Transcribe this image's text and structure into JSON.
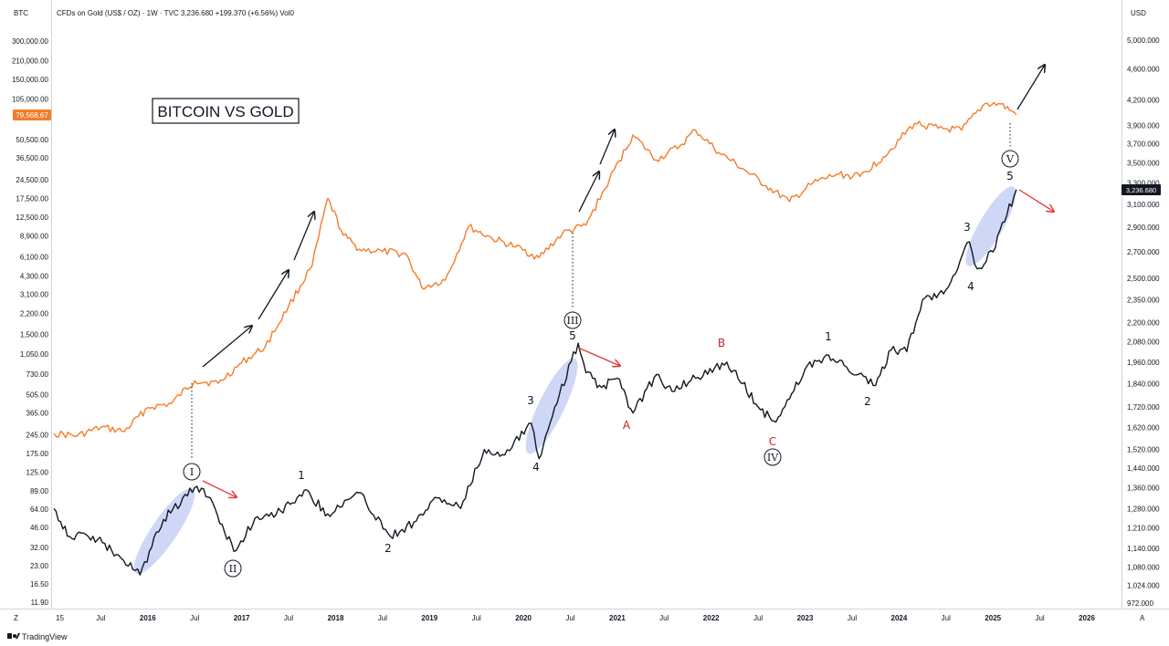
{
  "header": {
    "left_symbol": "BTC",
    "legend": "CFDs on Gold (US$ / OZ) · 1W · TVC  3,236.680  +199.370 (+6.56%)  Vol0",
    "right_currency": "USD"
  },
  "title": "BITCOIN VS GOLD",
  "footer": {
    "logo_text": "TradingView",
    "left_marker": "Z",
    "right_marker": "A"
  },
  "colors": {
    "btc_line": "#f57c2a",
    "gold_line": "#131722",
    "highlight": "#b9c8f2",
    "price_tag_btc": "#f57c2a",
    "price_tag_gold": "#131722",
    "up_arrow": "#131722",
    "down_arrow": "#e53935"
  },
  "chart_data": {
    "type": "line",
    "title": "BITCOIN VS GOLD",
    "x_axis": {
      "labels": [
        "15",
        "Jul",
        "2016",
        "Jul",
        "2017",
        "Jul",
        "2018",
        "Jul",
        "2019",
        "Jul",
        "2020",
        "Jul",
        "2021",
        "Jul",
        "2022",
        "Jul",
        "2023",
        "Jul",
        "2024",
        "Jul",
        "2025",
        "Jul",
        "2026"
      ],
      "range": [
        "2015-01",
        "2026-07"
      ]
    },
    "left_axis": {
      "scale": "log",
      "labels": [
        "300,000.00",
        "210,000.00",
        "150,000.00",
        "105,000.00",
        "50,500.00",
        "36,500.00",
        "24,500.00",
        "17,500.00",
        "12,500.00",
        "8,900.00",
        "6,100.00",
        "4,300.00",
        "3,100.00",
        "2,200.00",
        "1,500.00",
        "1,050.00",
        "730.00",
        "505.00",
        "365.00",
        "245.00",
        "175.00",
        "125.00",
        "89.00",
        "64.00",
        "46.00",
        "32.00",
        "23.00",
        "16.50",
        "11.90"
      ],
      "price_tag": "79,568.67"
    },
    "right_axis": {
      "scale": "log",
      "labels": [
        "5,000.000",
        "4,600.000",
        "4,200.000",
        "3,900.000",
        "3,700.000",
        "3,500.000",
        "3,300.000",
        "3,100.000",
        "2,900.000",
        "2,700.000",
        "2,500.000",
        "2,350.000",
        "2,200.000",
        "2,080.000",
        "1,960.000",
        "1,840.000",
        "1,720.000",
        "1,620.000",
        "1,520.000",
        "1,440.000",
        "1,360.000",
        "1,280.000",
        "1,210.000",
        "1,140.000",
        "1,080.000",
        "1,024.000",
        "972.000"
      ],
      "price_tag": "3,236.680"
    },
    "series": [
      {
        "axis": "left",
        "x": [
          "2015-01",
          "2015-04",
          "2015-07",
          "2015-10",
          "2016-01",
          "2016-04",
          "2016-07",
          "2016-10",
          "2017-01",
          "2017-04",
          "2017-07",
          "2017-10",
          "2017-12",
          "2018-02",
          "2018-04",
          "2018-07",
          "2018-10",
          "2018-12",
          "2019-03",
          "2019-06",
          "2019-09",
          "2019-12",
          "2020-03",
          "2020-06",
          "2020-09",
          "2020-12",
          "2021-03",
          "2021-06",
          "2021-09",
          "2021-11",
          "2022-02",
          "2022-05",
          "2022-08",
          "2022-11",
          "2023-02",
          "2023-05",
          "2023-08",
          "2023-11",
          "2024-03",
          "2024-06",
          "2024-09",
          "2024-12",
          "2025-02",
          "2025-04"
        ],
        "y": [
          250,
          240,
          280,
          260,
          400,
          430,
          650,
          620,
          900,
          1200,
          2500,
          5200,
          17500,
          9000,
          7000,
          6700,
          6400,
          3500,
          4000,
          10500,
          8500,
          7300,
          6000,
          9300,
          10800,
          24500,
          55000,
          35000,
          45000,
          60000,
          40000,
          30000,
          22000,
          16500,
          23000,
          27000,
          26000,
          37000,
          68000,
          62000,
          60000,
          97000,
          96000,
          79568.67
        ]
      },
      {
        "axis": "right",
        "x": [
          "2015-01",
          "2015-03",
          "2015-06",
          "2015-09",
          "2015-12",
          "2016-03",
          "2016-07",
          "2016-09",
          "2016-12",
          "2017-03",
          "2017-06",
          "2017-09",
          "2017-12",
          "2018-04",
          "2018-08",
          "2018-11",
          "2019-02",
          "2019-05",
          "2019-08",
          "2019-10",
          "2020-02",
          "2020-03",
          "2020-05",
          "2020-08",
          "2020-09",
          "2020-11",
          "2021-01",
          "2021-03",
          "2021-06",
          "2021-08",
          "2021-11",
          "2022-03",
          "2022-05",
          "2022-07",
          "2022-09",
          "2022-11",
          "2023-01",
          "2023-04",
          "2023-06",
          "2023-10",
          "2023-12",
          "2024-02",
          "2024-04",
          "2024-07",
          "2024-10",
          "2024-11",
          "2025-01",
          "2025-04"
        ],
        "y": [
          1280,
          1180,
          1180,
          1120,
          1055,
          1240,
          1360,
          1320,
          1130,
          1250,
          1270,
          1350,
          1260,
          1340,
          1180,
          1230,
          1320,
          1280,
          1520,
          1490,
          1640,
          1480,
          1720,
          2070,
          1900,
          1820,
          1870,
          1690,
          1890,
          1800,
          1870,
          1960,
          1840,
          1720,
          1650,
          1760,
          1920,
          2000,
          1940,
          1830,
          2030,
          2020,
          2350,
          2420,
          2780,
          2570,
          2700,
          3236.68
        ]
      }
    ],
    "annotations": [
      {
        "text": "I",
        "circled": true,
        "x": "2016-08"
      },
      {
        "text": "II",
        "circled": true,
        "x": "2016-12"
      },
      {
        "text": "III",
        "circled": true,
        "x": "2020-08"
      },
      {
        "text": "IV",
        "circled": true,
        "x": "2022-10"
      },
      {
        "text": "V",
        "circled": true,
        "x": "2025-04"
      },
      {
        "text": "1",
        "x": "2017-09"
      },
      {
        "text": "2",
        "x": "2018-12"
      },
      {
        "text": "3",
        "x": "2020-03"
      },
      {
        "text": "4",
        "x": "2020-04"
      },
      {
        "text": "5",
        "x": "2020-08"
      },
      {
        "text": "A",
        "x": "2021-03"
      },
      {
        "text": "B",
        "x": "2022-04"
      },
      {
        "text": "C",
        "x": "2022-10"
      },
      {
        "text": "1",
        "x": "2023-09"
      },
      {
        "text": "2",
        "x": "2023-12"
      },
      {
        "text": "3",
        "x": "2024-10"
      },
      {
        "text": "4",
        "x": "2024-11"
      },
      {
        "text": "5",
        "x": "2025-04"
      }
    ]
  }
}
